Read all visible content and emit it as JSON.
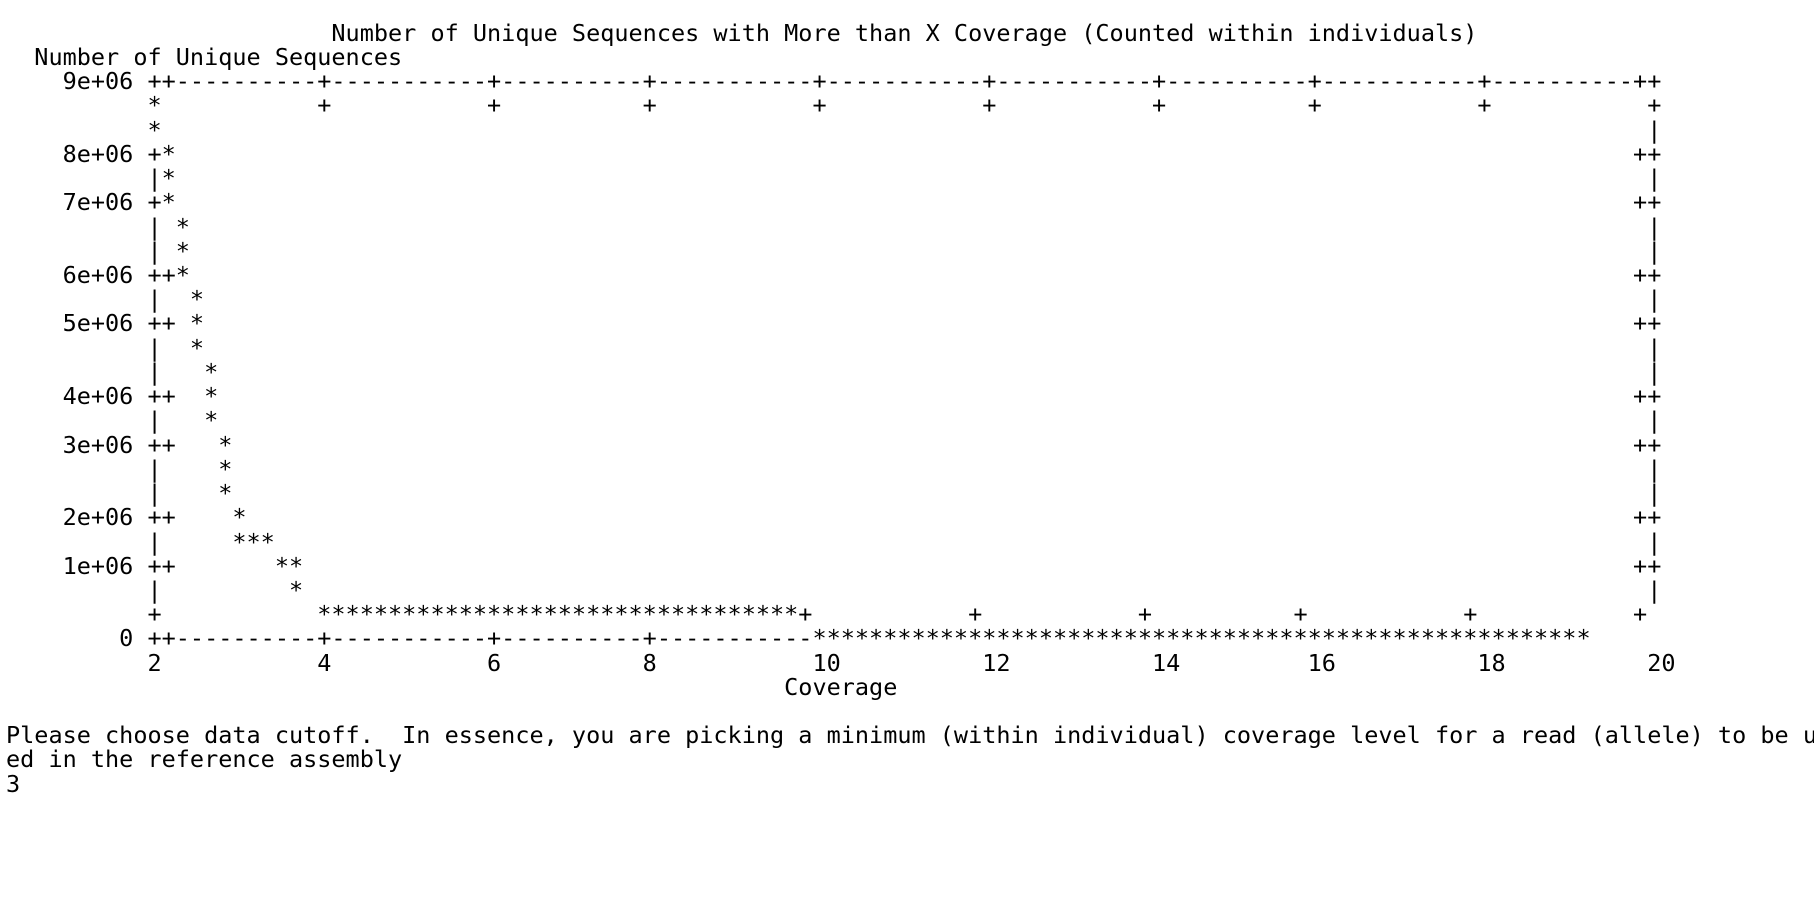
{
  "terminal": {
    "lines": [
      "                       Number of Unique Sequences with More than X Coverage (Counted within individuals)",
      "  Number of Unique Sequences",
      "    9e+06 ++----------+-----------+----------+-----------+-----------+-----------+----------+-----------+----------++",
      "          *           +           +          +           +           +           +          +           +           +",
      "          *                                                                                                         |",
      "    8e+06 +*                                                                                                       ++",
      "          |*                                                                                                        |",
      "    7e+06 +*                                                                                                       ++",
      "          | *                                                                                                       |",
      "          | *                                                                                                       |",
      "    6e+06 ++*                                                                                                      ++",
      "          |  *                                                                                                      |",
      "    5e+06 ++ *                                                                                                     ++",
      "          |  *                                                                                                      |",
      "          |   *                                                                                                     |",
      "    4e+06 ++  *                                                                                                    ++",
      "          |   *                                                                                                     |",
      "    3e+06 ++   *                                                                                                   ++",
      "          |    *                                                                                                    |",
      "          |    *                                                                                                    |",
      "    2e+06 ++    *                                                                                                  ++",
      "          |     ***                                                                                                 |",
      "    1e+06 ++       **                                                                                              ++",
      "          |         *                                                                                               |",
      "          +           **********************************+           +           +          +           +           +",
      "        0 ++----------+-----------+----------+-----------*******************************************************",
      "          2           4           6          8           10          12          14         16          18          20",
      "                                                       Coverage",
      "",
      "Please choose data cutoff.  In essence, you are picking a minimum (within individual) coverage level for a read (allele) to be us",
      "ed in the reference assembly",
      "3"
    ]
  }
}
